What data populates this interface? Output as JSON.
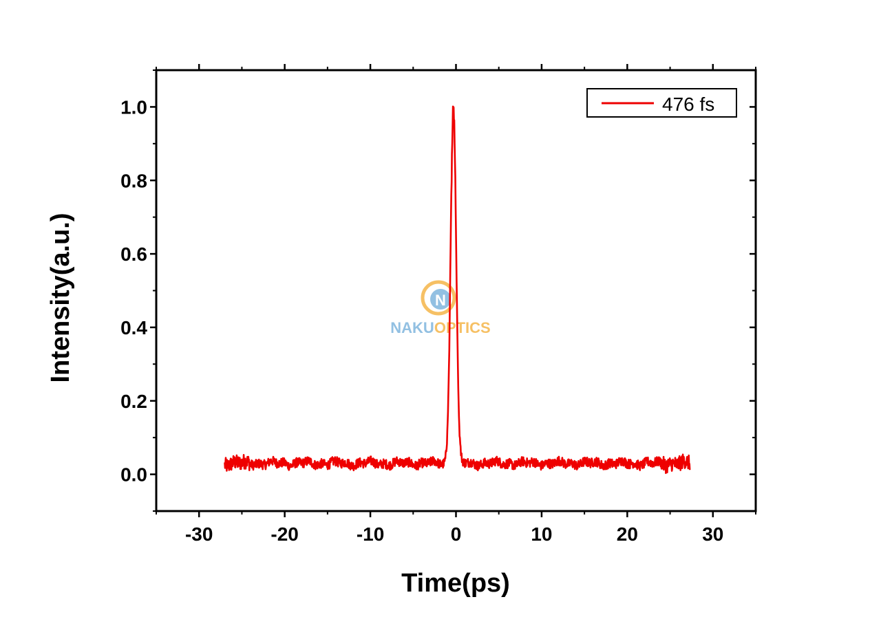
{
  "chart_data": {
    "type": "line",
    "title": "",
    "xlabel": "Time(ps)",
    "ylabel": "Intensity(a.u.)",
    "xlim": [
      -35,
      35
    ],
    "ylim": [
      -0.1,
      1.1
    ],
    "x_ticks": [
      -30,
      -20,
      -10,
      0,
      10,
      20,
      30
    ],
    "x_tick_labels": [
      "-30",
      "-20",
      "-10",
      "0",
      "10",
      "20",
      "30"
    ],
    "y_ticks": [
      0.0,
      0.2,
      0.4,
      0.6,
      0.8,
      1.0
    ],
    "y_tick_labels": [
      "0.0",
      "0.2",
      "0.4",
      "0.6",
      "0.8",
      "1.0"
    ],
    "grid": false,
    "legend": {
      "position": "top-right",
      "entries": [
        "476 fs"
      ]
    },
    "series": [
      {
        "name": "476 fs",
        "color": "#ee0000",
        "x_range": [
          -27,
          27.3
        ],
        "baseline": 0.03,
        "baseline_noise": 0.013,
        "peak_center": -0.3,
        "peak_value": 1.0,
        "fwhm_fs": 476
      }
    ],
    "watermark": {
      "part1": "NAKU",
      "part2": "OPTICS",
      "logo_letter": "N"
    }
  },
  "colors": {
    "accent": "#ee0000",
    "watermark_blue": "#7fb6de",
    "watermark_orange": "#f5b64a"
  }
}
